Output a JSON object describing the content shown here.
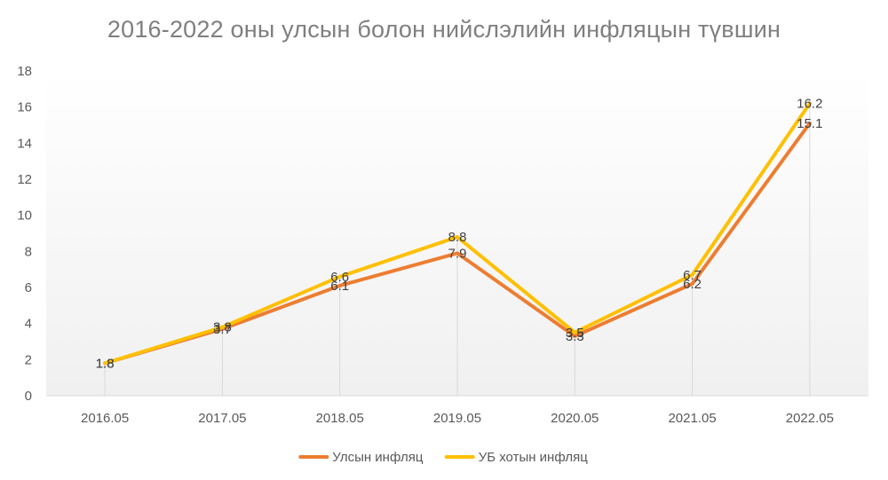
{
  "chart_data": {
    "type": "line",
    "title": "2016-2022 оны улсын болон нийслэлийн инфляцын түвшин",
    "xlabel": "",
    "ylabel": "",
    "categories": [
      "2016.05",
      "2017.05",
      "2018.05",
      "2019.05",
      "2020.05",
      "2021.05",
      "2022.05"
    ],
    "ylim": [
      0,
      18
    ],
    "yticks": [
      0,
      2,
      4,
      6,
      8,
      10,
      12,
      14,
      16,
      18
    ],
    "grid": "vertical drop lines at categories",
    "legend_position": "bottom",
    "series": [
      {
        "name": "Улсын инфляц",
        "color": "#ed7d31",
        "values": [
          1.8,
          3.7,
          6.1,
          7.9,
          3.3,
          6.2,
          15.1
        ],
        "labels": [
          "1.8",
          "3.7",
          "6.1",
          "7.9",
          "3.3",
          "6.2",
          "15.1"
        ]
      },
      {
        "name": "УБ хотын инфляц",
        "color": "#ffc000",
        "values": [
          1.8,
          3.8,
          6.6,
          8.8,
          3.5,
          6.7,
          16.2
        ],
        "labels": [
          "1.8",
          "3.8",
          "6.6",
          "8.8",
          "3.5",
          "6.7",
          "16.2"
        ]
      }
    ]
  }
}
